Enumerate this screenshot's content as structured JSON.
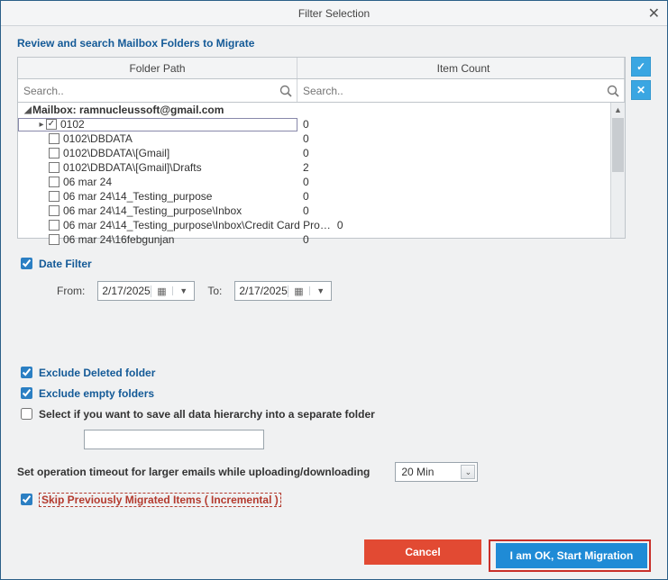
{
  "window": {
    "title": "Filter Selection"
  },
  "review_label": "Review and search Mailbox Folders to Migrate",
  "grid": {
    "header_col1": "Folder Path",
    "header_col2": "Item Count",
    "search_placeholder": "Search..",
    "mailbox_label": "Mailbox: ramnucleussoft@gmail.com",
    "rows": [
      {
        "label": "0102",
        "count": "0",
        "checked": true,
        "expand": "▸",
        "outlined": true
      },
      {
        "label": "0102\\DBDATA",
        "count": "0"
      },
      {
        "label": "0102\\DBDATA\\[Gmail]",
        "count": "0"
      },
      {
        "label": "0102\\DBDATA\\[Gmail]\\Drafts",
        "count": "2"
      },
      {
        "label": "06 mar 24",
        "count": "0"
      },
      {
        "label": "06 mar 24\\14_Testing_purpose",
        "count": "0"
      },
      {
        "label": "06 mar 24\\14_Testing_purpose\\Inbox",
        "count": "0"
      },
      {
        "label": "06 mar 24\\14_Testing_purpose\\Inbox\\Credit Card Pro…",
        "count": "0"
      },
      {
        "label": "06 mar 24\\16febgunjan",
        "count": "0"
      }
    ]
  },
  "side": {
    "select_all_glyph": "✓",
    "clear_all_glyph": "✕"
  },
  "filters": {
    "date_filter_label": "Date Filter",
    "from_label": "From:",
    "to_label": "To:",
    "from_value": "2/17/2025",
    "to_value": "2/17/2025",
    "exclude_deleted": "Exclude Deleted folder",
    "exclude_empty": "Exclude empty folders",
    "separate_folder": "Select if you want to save all data hierarchy into a separate folder",
    "timeout_label": "Set operation timeout for larger emails while uploading/downloading",
    "timeout_value": "20 Min",
    "skip_label": "Skip Previously Migrated Items ( Incremental )"
  },
  "buttons": {
    "cancel": "Cancel",
    "start": "I am OK, Start Migration"
  },
  "colors": {
    "accent": "#1f8bd6",
    "danger": "#e24a33",
    "highlight_red": "#c8302a"
  }
}
